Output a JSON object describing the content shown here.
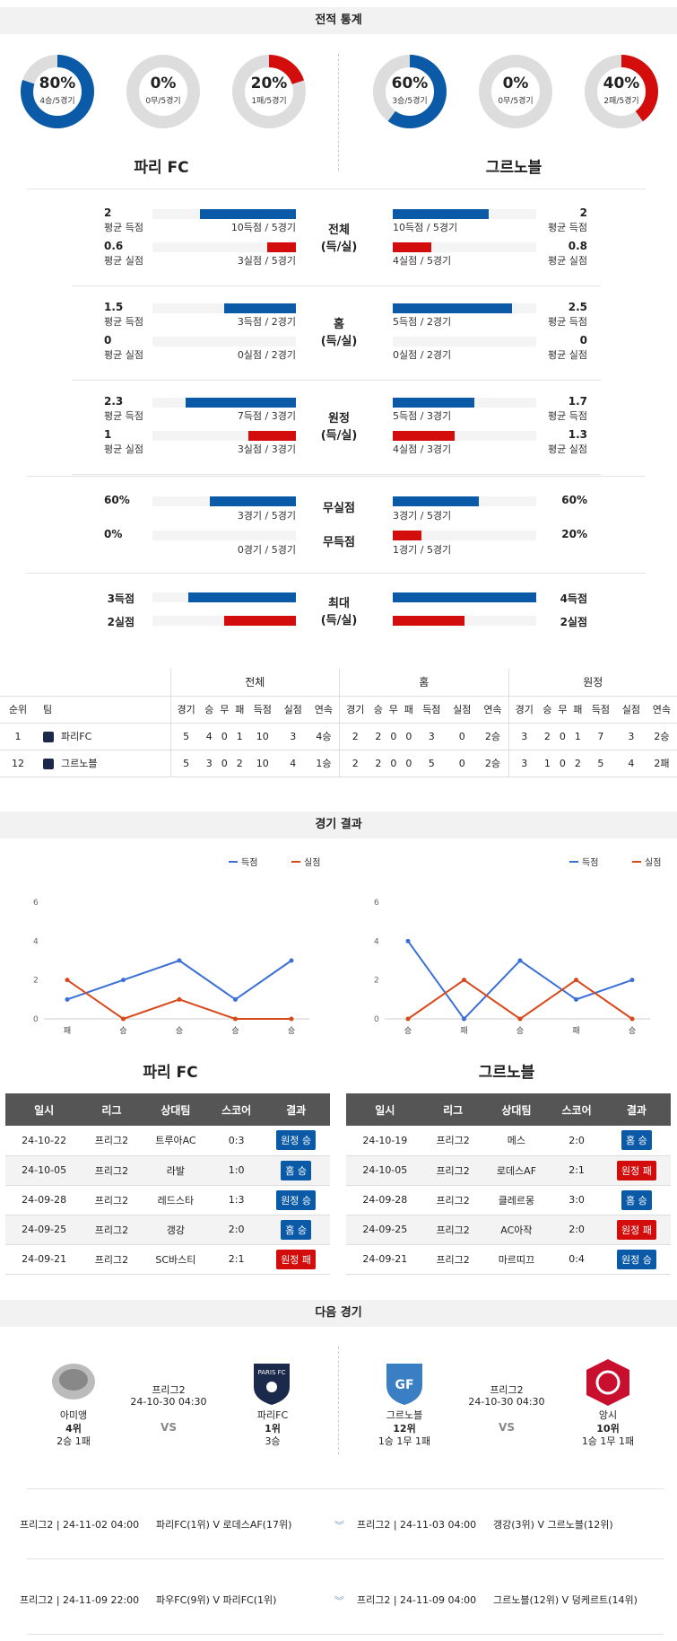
{
  "sections": {
    "h2h": "전적 통계",
    "results": "경기 결과",
    "next": "다음 경기"
  },
  "colors": {
    "blue": "#0b5aa8",
    "red": "#d30c0c",
    "gray": "#dddddd"
  },
  "teams": {
    "left": {
      "name": "파리 FC",
      "donuts": [
        {
          "pct": "80%",
          "sub": "4승/5경기",
          "value": 0.8,
          "color": "#0b5aa8"
        },
        {
          "pct": "0%",
          "sub": "0무/5경기",
          "value": 0,
          "color": "#0b5aa8"
        },
        {
          "pct": "20%",
          "sub": "1패/5경기",
          "value": 0.2,
          "color": "#d30c0c"
        }
      ]
    },
    "right": {
      "name": "그르노블",
      "donuts": [
        {
          "pct": "60%",
          "sub": "3승/5경기",
          "value": 0.6,
          "color": "#0b5aa8"
        },
        {
          "pct": "0%",
          "sub": "0무/5경기",
          "value": 0,
          "color": "#0b5aa8"
        },
        {
          "pct": "40%",
          "sub": "2패/5경기",
          "value": 0.4,
          "color": "#d30c0c"
        }
      ]
    }
  },
  "stats": [
    {
      "cat1": "전체",
      "cat2": "(득/실)",
      "rows": [
        {
          "lval": "2",
          "llbl": "평균 득점",
          "lbar": "10득점 / 5경기",
          "lfrac": 0.67,
          "rval": "2",
          "rlbl": "평균 득점",
          "rbar": "10득점 / 5경기",
          "rfrac": 0.67,
          "color": "blue"
        },
        {
          "lval": "0.6",
          "llbl": "평균 실점",
          "lbar": "3실점 / 5경기",
          "lfrac": 0.2,
          "rval": "0.8",
          "rlbl": "평균 실점",
          "rbar": "4실점 / 5경기",
          "rfrac": 0.27,
          "color": "red"
        }
      ]
    },
    {
      "cat1": "홈",
      "cat2": "(득/실)",
      "rows": [
        {
          "lval": "1.5",
          "llbl": "평균 득점",
          "lbar": "3득점 / 2경기",
          "lfrac": 0.5,
          "rval": "2.5",
          "rlbl": "평균 득점",
          "rbar": "5득점 / 2경기",
          "rfrac": 0.83,
          "color": "blue"
        },
        {
          "lval": "0",
          "llbl": "평균 실점",
          "lbar": "0실점 / 2경기",
          "lfrac": 0,
          "rval": "0",
          "rlbl": "평균 실점",
          "rbar": "0실점 / 2경기",
          "rfrac": 0,
          "color": "red"
        }
      ]
    },
    {
      "cat1": "원정",
      "cat2": "(득/실)",
      "rows": [
        {
          "lval": "2.3",
          "llbl": "평균 득점",
          "lbar": "7득점 / 3경기",
          "lfrac": 0.77,
          "rval": "1.7",
          "rlbl": "평균 득점",
          "rbar": "5득점 / 3경기",
          "rfrac": 0.57,
          "color": "blue"
        },
        {
          "lval": "1",
          "llbl": "평균 실점",
          "lbar": "3실점 / 3경기",
          "lfrac": 0.33,
          "rval": "1.3",
          "rlbl": "평균 실점",
          "rbar": "4실점 / 3경기",
          "rfrac": 0.43,
          "color": "red"
        }
      ]
    }
  ],
  "cleansheet": [
    {
      "cat": "무실점",
      "lval": "60%",
      "lbar": "3경기 / 5경기",
      "lfrac": 0.6,
      "rval": "60%",
      "rbar": "3경기 / 5경기",
      "rfrac": 0.6,
      "color": "blue"
    },
    {
      "cat": "무득점",
      "lval": "0%",
      "lbar": "0경기 / 5경기",
      "lfrac": 0,
      "rval": "20%",
      "rbar": "1경기 / 5경기",
      "rfrac": 0.2,
      "color": "red"
    }
  ],
  "max": {
    "cat1": "최대",
    "cat2": "(득/실)",
    "rows": [
      {
        "lval": "3득점",
        "lfrac": 0.75,
        "rval": "4득점",
        "rfrac": 1.0,
        "color": "blue"
      },
      {
        "lval": "2실점",
        "lfrac": 0.5,
        "rval": "2실점",
        "rfrac": 0.5,
        "color": "red"
      }
    ]
  },
  "standings": {
    "groups": [
      "전체",
      "홈",
      "원정"
    ],
    "headers": [
      "순위",
      "팀"
    ],
    "cols": [
      "경기",
      "승",
      "무",
      "패",
      "득점",
      "실점",
      "연속"
    ],
    "rows": [
      {
        "rank": "1",
        "team": "파리FC",
        "total": [
          "5",
          "4",
          "0",
          "1",
          "10",
          "3",
          "4승"
        ],
        "home": [
          "2",
          "2",
          "0",
          "0",
          "3",
          "0",
          "2승"
        ],
        "away": [
          "3",
          "2",
          "0",
          "1",
          "7",
          "3",
          "2승"
        ]
      },
      {
        "rank": "12",
        "team": "그르노블",
        "total": [
          "5",
          "3",
          "0",
          "2",
          "10",
          "4",
          "1승"
        ],
        "home": [
          "2",
          "2",
          "0",
          "0",
          "5",
          "0",
          "2승"
        ],
        "away": [
          "3",
          "1",
          "0",
          "2",
          "5",
          "4",
          "2패"
        ]
      }
    ]
  },
  "chart_data": [
    {
      "type": "line",
      "legend": [
        "득점",
        "실점"
      ],
      "categories": [
        "패",
        "승",
        "승",
        "승",
        "승"
      ],
      "yticks": [
        "0",
        "2",
        "4",
        "6"
      ],
      "ylim": [
        0,
        6
      ],
      "series": [
        {
          "name": "득점",
          "color": "#3b6fd8",
          "values": [
            1,
            2,
            3,
            1,
            3
          ]
        },
        {
          "name": "실점",
          "color": "#d8481b",
          "values": [
            2,
            0,
            1,
            0,
            0
          ]
        }
      ]
    },
    {
      "type": "line",
      "legend": [
        "득점",
        "실점"
      ],
      "categories": [
        "승",
        "패",
        "승",
        "패",
        "승"
      ],
      "yticks": [
        "0",
        "2",
        "4",
        "6"
      ],
      "ylim": [
        0,
        6
      ],
      "series": [
        {
          "name": "득점",
          "color": "#3b6fd8",
          "values": [
            4,
            0,
            3,
            1,
            2
          ]
        },
        {
          "name": "실점",
          "color": "#d8481b",
          "values": [
            0,
            2,
            0,
            2,
            0
          ]
        }
      ]
    }
  ],
  "results": {
    "left_title": "파리 FC",
    "right_title": "그르노블",
    "headers": [
      "일시",
      "리그",
      "상대팀",
      "스코어",
      "결과"
    ],
    "left": [
      {
        "date": "24-10-22",
        "league": "프리그2",
        "opp": "트루아AC",
        "score": "0:3",
        "result": "원정 승",
        "color": "blue"
      },
      {
        "date": "24-10-05",
        "league": "프리그2",
        "opp": "라발",
        "score": "1:0",
        "result": "홈 승",
        "color": "blue"
      },
      {
        "date": "24-09-28",
        "league": "프리그2",
        "opp": "레드스타",
        "score": "1:3",
        "result": "원정 승",
        "color": "blue"
      },
      {
        "date": "24-09-25",
        "league": "프리그2",
        "opp": "갱강",
        "score": "2:0",
        "result": "홈 승",
        "color": "blue"
      },
      {
        "date": "24-09-21",
        "league": "프리그2",
        "opp": "SC바스티",
        "score": "2:1",
        "result": "원정 패",
        "color": "red"
      }
    ],
    "right": [
      {
        "date": "24-10-19",
        "league": "프리그2",
        "opp": "메스",
        "score": "2:0",
        "result": "홈 승",
        "color": "blue"
      },
      {
        "date": "24-10-05",
        "league": "프리그2",
        "opp": "로데스AF",
        "score": "2:1",
        "result": "원정 패",
        "color": "red"
      },
      {
        "date": "24-09-28",
        "league": "프리그2",
        "opp": "클레르몽",
        "score": "3:0",
        "result": "홈 승",
        "color": "blue"
      },
      {
        "date": "24-09-25",
        "league": "프리그2",
        "opp": "AC아작",
        "score": "2:0",
        "result": "원정 패",
        "color": "red"
      },
      {
        "date": "24-09-21",
        "league": "프리그2",
        "opp": "마르띠끄",
        "score": "0:4",
        "result": "원정 승",
        "color": "blue"
      }
    ]
  },
  "next": {
    "left": {
      "league": "프리그2",
      "datetime": "24-10-30 04:30",
      "vs": "VS",
      "home": {
        "name": "아미앵",
        "rank": "4위",
        "record": "2승 1패"
      },
      "away": {
        "name": "파리FC",
        "rank": "1위",
        "record": "3승"
      }
    },
    "right": {
      "league": "프리그2",
      "datetime": "24-10-30 04:30",
      "vs": "VS",
      "home": {
        "name": "그르노블",
        "rank": "12위",
        "record": "1승 1무 1패"
      },
      "away": {
        "name": "앙시",
        "rank": "10위",
        "record": "1승 1무 1패"
      }
    },
    "upcoming": [
      {
        "left": "프리그2 | 24-11-02 04:00",
        "lteams": "파리FC(1위) V 로데스AF(17위)",
        "right": "프리그2 | 24-11-03 04:00",
        "rteams": "갱강(3위) V 그르노블(12위)"
      },
      {
        "left": "프리그2 | 24-11-09 22:00",
        "lteams": "파우FC(9위) V 파리FC(1위)",
        "right": "프리그2 | 24-11-09 04:00",
        "rteams": "그르노블(12위) V 덩케르트(14위)"
      }
    ]
  }
}
